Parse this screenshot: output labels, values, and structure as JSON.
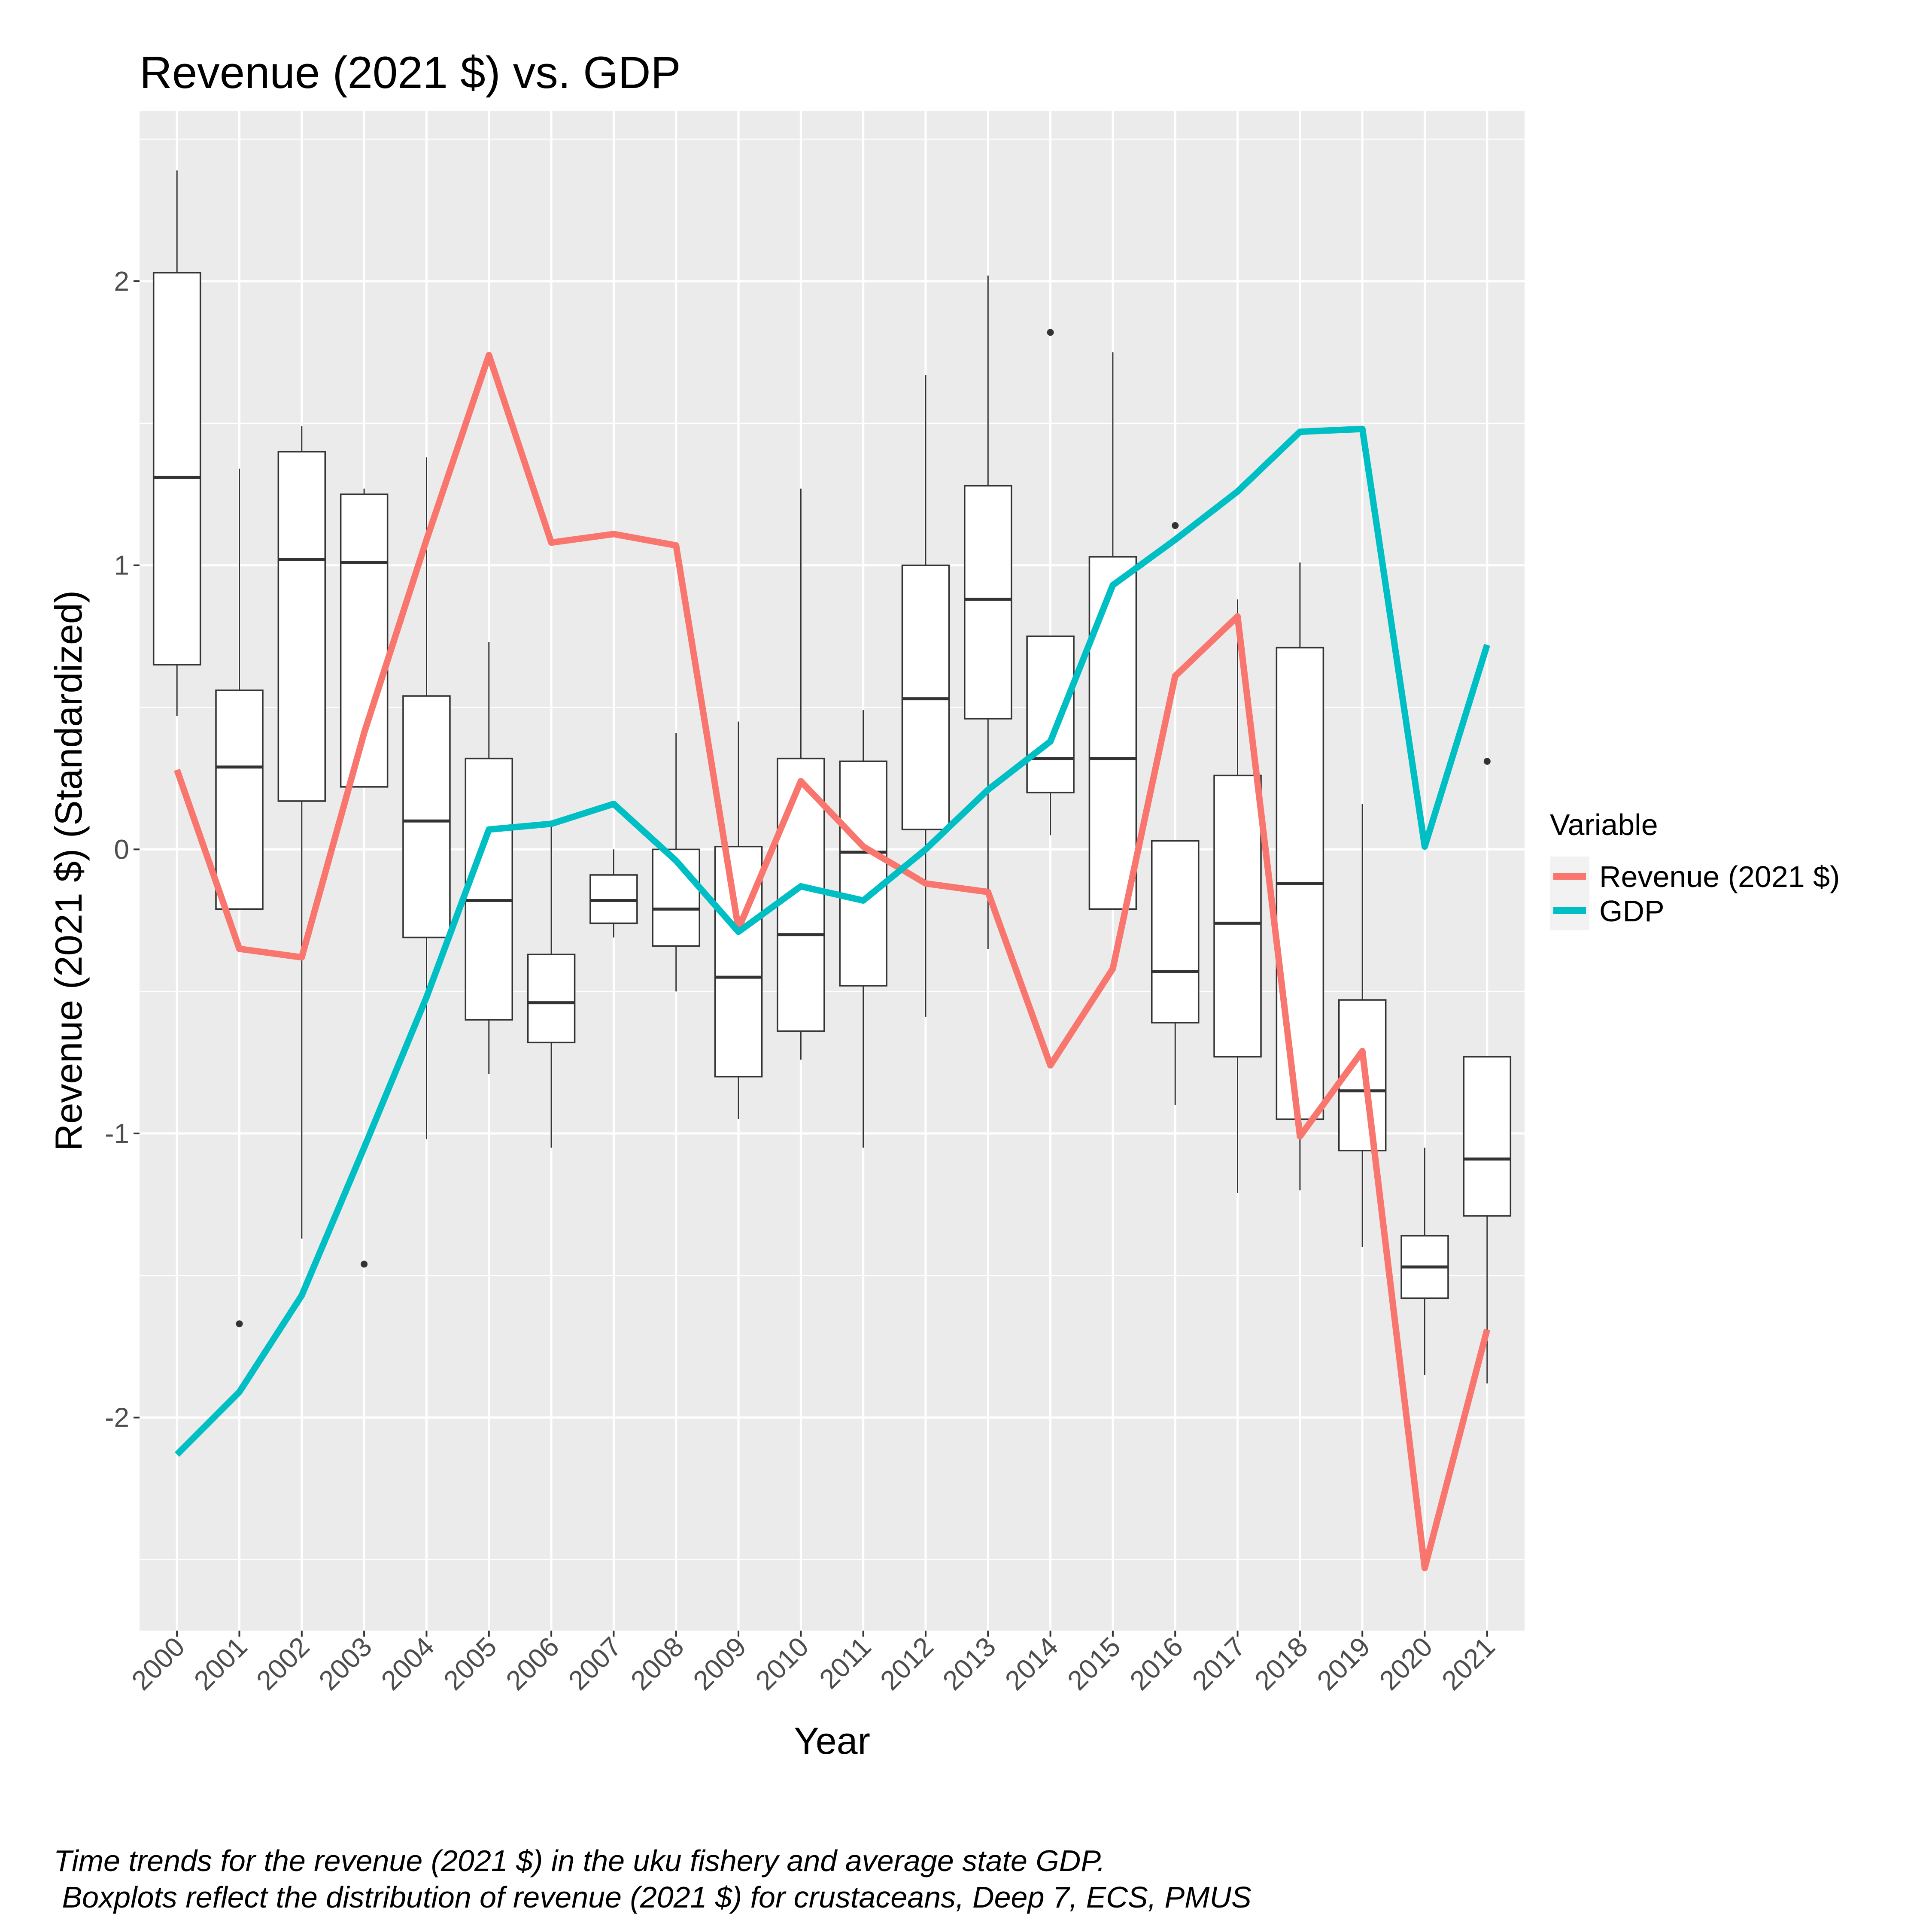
{
  "chart_data": {
    "type": "boxplot-line",
    "title": "Revenue (2021 $) vs. GDP",
    "xlabel": "Year",
    "ylabel": "Revenue (2021 $) (Standardized)",
    "ylim": [
      -2.75,
      2.6
    ],
    "yticks": [
      -2,
      -1,
      0,
      1,
      2
    ],
    "ytick_labels": [
      "-2",
      "-1",
      "0",
      "1",
      "2"
    ],
    "grid": true,
    "legend_position": "right",
    "legend_title": "Variable",
    "categories": [
      "2000",
      "2001",
      "2002",
      "2003",
      "2004",
      "2005",
      "2006",
      "2007",
      "2008",
      "2009",
      "2010",
      "2011",
      "2012",
      "2013",
      "2014",
      "2015",
      "2016",
      "2017",
      "2018",
      "2019",
      "2020",
      "2021"
    ],
    "boxplots": [
      {
        "year": "2000",
        "whisker_low": 0.47,
        "q1": 0.65,
        "median": 1.31,
        "q3": 2.03,
        "whisker_high": 2.39,
        "outliers": []
      },
      {
        "year": "2001",
        "whisker_low": -0.21,
        "q1": -0.21,
        "median": 0.29,
        "q3": 0.56,
        "whisker_high": 1.34,
        "outliers": [
          -1.67
        ]
      },
      {
        "year": "2002",
        "whisker_low": -1.37,
        "q1": 0.17,
        "median": 1.02,
        "q3": 1.4,
        "whisker_high": 1.49,
        "outliers": []
      },
      {
        "year": "2003",
        "whisker_low": 0.22,
        "q1": 0.22,
        "median": 1.01,
        "q3": 1.25,
        "whisker_high": 1.27,
        "outliers": [
          -1.46
        ]
      },
      {
        "year": "2004",
        "whisker_low": -1.02,
        "q1": -0.31,
        "median": 0.1,
        "q3": 0.54,
        "whisker_high": 1.38,
        "outliers": []
      },
      {
        "year": "2005",
        "whisker_low": -0.79,
        "q1": -0.6,
        "median": -0.18,
        "q3": 0.32,
        "whisker_high": 0.73,
        "outliers": []
      },
      {
        "year": "2006",
        "whisker_low": -1.05,
        "q1": -0.68,
        "median": -0.54,
        "q3": -0.37,
        "whisker_high": 0.08,
        "outliers": []
      },
      {
        "year": "2007",
        "whisker_low": -0.31,
        "q1": -0.26,
        "median": -0.18,
        "q3": -0.09,
        "whisker_high": 0.0,
        "outliers": []
      },
      {
        "year": "2008",
        "whisker_low": -0.5,
        "q1": -0.34,
        "median": -0.21,
        "q3": 0.0,
        "whisker_high": 0.41,
        "outliers": []
      },
      {
        "year": "2009",
        "whisker_low": -0.95,
        "q1": -0.8,
        "median": -0.45,
        "q3": 0.01,
        "whisker_high": 0.45,
        "outliers": []
      },
      {
        "year": "2010",
        "whisker_low": -0.74,
        "q1": -0.64,
        "median": -0.3,
        "q3": 0.32,
        "whisker_high": 1.27,
        "outliers": []
      },
      {
        "year": "2011",
        "whisker_low": -1.05,
        "q1": -0.48,
        "median": -0.01,
        "q3": 0.31,
        "whisker_high": 0.49,
        "outliers": []
      },
      {
        "year": "2012",
        "whisker_low": -0.59,
        "q1": 0.07,
        "median": 0.53,
        "q3": 1.0,
        "whisker_high": 1.67,
        "outliers": []
      },
      {
        "year": "2013",
        "whisker_low": -0.35,
        "q1": 0.46,
        "median": 0.88,
        "q3": 1.28,
        "whisker_high": 2.02,
        "outliers": []
      },
      {
        "year": "2014",
        "whisker_low": 0.05,
        "q1": 0.2,
        "median": 0.32,
        "q3": 0.75,
        "whisker_high": 0.75,
        "outliers": [
          1.82
        ]
      },
      {
        "year": "2015",
        "whisker_low": -0.21,
        "q1": -0.21,
        "median": 0.32,
        "q3": 1.03,
        "whisker_high": 1.75,
        "outliers": []
      },
      {
        "year": "2016",
        "whisker_low": -0.9,
        "q1": -0.61,
        "median": -0.43,
        "q3": 0.03,
        "whisker_high": 0.03,
        "outliers": [
          1.14
        ]
      },
      {
        "year": "2017",
        "whisker_low": -1.21,
        "q1": -0.73,
        "median": -0.26,
        "q3": 0.26,
        "whisker_high": 0.88,
        "outliers": []
      },
      {
        "year": "2018",
        "whisker_low": -1.2,
        "q1": -0.95,
        "median": -0.12,
        "q3": 0.71,
        "whisker_high": 1.01,
        "outliers": []
      },
      {
        "year": "2019",
        "whisker_low": -1.4,
        "q1": -1.06,
        "median": -0.85,
        "q3": -0.53,
        "whisker_high": 0.16,
        "outliers": []
      },
      {
        "year": "2020",
        "whisker_low": -1.85,
        "q1": -1.58,
        "median": -1.47,
        "q3": -1.36,
        "whisker_high": -1.05,
        "outliers": []
      },
      {
        "year": "2021",
        "whisker_low": -1.88,
        "q1": -1.29,
        "median": -1.09,
        "q3": -0.73,
        "whisker_high": -0.73,
        "outliers": [
          0.31
        ]
      }
    ],
    "series": [
      {
        "name": "Revenue (2021 $)",
        "color": "#F8766D",
        "values": [
          0.28,
          -0.35,
          -0.38,
          0.41,
          1.09,
          1.74,
          1.08,
          1.11,
          1.07,
          -0.28,
          0.24,
          0.01,
          -0.12,
          -0.15,
          -0.76,
          -0.42,
          0.61,
          0.82,
          -1.01,
          -0.71,
          -2.53,
          -1.69
        ]
      },
      {
        "name": "GDP",
        "color": "#00BFC4",
        "values": [
          -2.13,
          -1.91,
          -1.57,
          -1.05,
          -0.52,
          0.07,
          0.09,
          0.16,
          -0.04,
          -0.29,
          -0.13,
          -0.18,
          0.0,
          0.21,
          0.38,
          0.93,
          1.09,
          1.26,
          1.47,
          1.48,
          0.01,
          0.72
        ]
      }
    ]
  },
  "caption": {
    "line1": "Time trends for the revenue (2021 $) in the uku fishery and average state GDP.",
    "line2": " Boxplots reflect the distribution of revenue (2021 $) for crustaceans, Deep 7, ECS, PMUS"
  }
}
